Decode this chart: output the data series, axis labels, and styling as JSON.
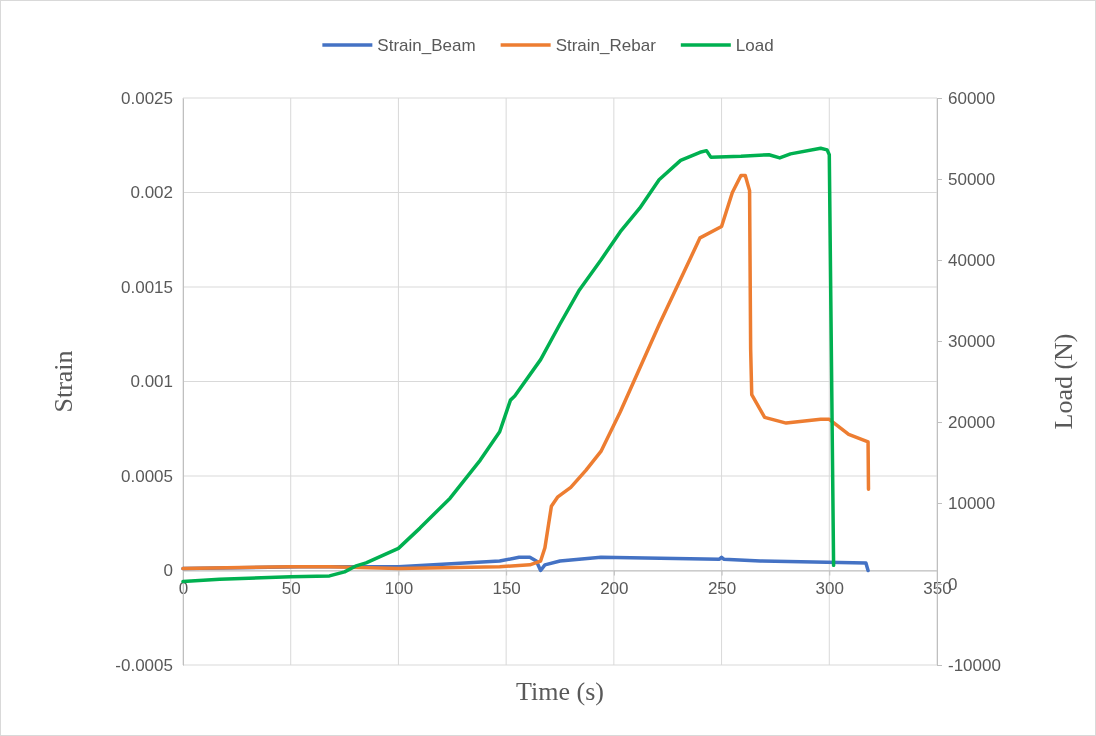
{
  "chart_data": {
    "type": "line",
    "xlabel": "Time (s)",
    "ylabel": "Strain",
    "y2label": "Load (N)",
    "xlim": [
      0,
      350
    ],
    "xticks": [
      0,
      50,
      100,
      150,
      200,
      250,
      300,
      350
    ],
    "ylim": [
      -0.0005,
      0.0025
    ],
    "yticks": [
      -0.0005,
      0,
      0.0005,
      0.001,
      0.0015,
      0.002,
      0.0025
    ],
    "y2lim": [
      -10000,
      60000
    ],
    "y2ticks": [
      -10000,
      0,
      10000,
      20000,
      30000,
      40000,
      50000,
      60000
    ],
    "grid": true,
    "legend": "top",
    "marker": "none",
    "line_style": "solid",
    "series": [
      {
        "name": "Strain_Beam",
        "color": "#4472c4",
        "x": [
          0,
          54,
          100,
          147,
          156,
          161,
          164,
          166,
          168,
          175,
          194,
          249,
          250,
          251,
          268,
          317,
          318
        ],
        "values": [
          1e-05,
          2e-05,
          2e-05,
          5e-05,
          7e-05,
          7e-05,
          5e-05,
          0,
          3e-05,
          5e-05,
          7e-05,
          6e-05,
          7e-05,
          6e-05,
          5e-05,
          4e-05,
          0
        ]
      },
      {
        "name": "Strain_Rebar",
        "color": "#ed7d31",
        "x": [
          0,
          50,
          68,
          100,
          147,
          161,
          166,
          168,
          171,
          174,
          180,
          187,
          194,
          203,
          221,
          240,
          250,
          255,
          259,
          261,
          263,
          263.5,
          264,
          270,
          280,
          296,
          300,
          309,
          318,
          318.2
        ],
        "values": [
          1e-05,
          2e-05,
          2e-05,
          1e-05,
          2e-05,
          3e-05,
          5e-05,
          0.00012,
          0.00034,
          0.00039,
          0.00044,
          0.00053,
          0.00063,
          0.00084,
          0.0013,
          0.00176,
          0.00182,
          0.002,
          0.00209,
          0.00209,
          0.00201,
          0.00117,
          0.00093,
          0.00081,
          0.00078,
          0.0008,
          0.0008,
          0.00072,
          0.00068,
          0.00043
        ]
      },
      {
        "name": "Load",
        "color": "#00b050",
        "axis": "y2",
        "x": [
          0,
          17,
          50,
          68,
          75,
          80,
          85,
          100,
          110,
          124,
          138,
          147,
          152,
          154,
          166,
          175,
          184,
          194,
          203,
          212,
          221,
          231,
          240,
          243,
          245,
          259,
          272,
          277,
          282,
          296,
          299,
          300,
          302
        ],
        "values": [
          300,
          600,
          900,
          1000,
          1500,
          2200,
          2600,
          4400,
          6900,
          10600,
          15300,
          18800,
          22700,
          23200,
          27700,
          32100,
          36300,
          40000,
          43500,
          46400,
          49900,
          52300,
          53300,
          53500,
          52700,
          52800,
          53000,
          52600,
          53100,
          53800,
          53600,
          53000,
          2300
        ]
      }
    ]
  }
}
